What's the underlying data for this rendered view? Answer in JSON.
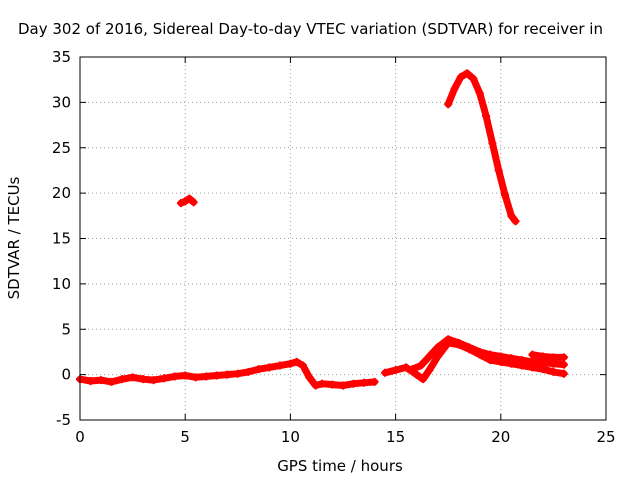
{
  "chart_data": {
    "type": "scatter",
    "title": "Day 302 of 2016, Sidereal Day-to-day VTEC variation (SDTVAR) for receiver in",
    "xlabel": "GPS time / hours",
    "ylabel": "SDTVAR / TECUs",
    "xlim": [
      0,
      25
    ],
    "ylim": [
      -5,
      35
    ],
    "xticks": [
      0,
      5,
      10,
      15,
      20,
      25
    ],
    "yticks": [
      -5,
      0,
      5,
      10,
      15,
      20,
      25,
      30,
      35
    ],
    "grid": true,
    "legend": "none",
    "marker": "+",
    "color": "#ff0000",
    "series": [
      {
        "x": [
          0.0,
          0.5,
          1.0,
          1.5,
          2.0,
          2.5,
          3.0,
          3.5,
          4.0,
          4.5,
          5.0,
          5.5,
          6.0,
          6.5,
          7.0,
          7.5,
          8.0,
          8.5,
          9.0,
          9.5,
          10.0,
          10.3,
          10.6,
          10.9,
          11.2,
          11.5,
          12.0,
          12.5,
          13.0,
          13.5,
          14.0
        ],
        "y": [
          -0.5,
          -0.7,
          -0.6,
          -0.8,
          -0.5,
          -0.3,
          -0.5,
          -0.6,
          -0.4,
          -0.2,
          -0.1,
          -0.3,
          -0.2,
          -0.1,
          0.0,
          0.1,
          0.3,
          0.6,
          0.8,
          1.0,
          1.2,
          1.4,
          1.0,
          -0.3,
          -1.2,
          -1.0,
          -1.1,
          -1.2,
          -1.0,
          -0.9,
          -0.8
        ]
      },
      {
        "x": [
          4.8,
          5.0,
          5.2,
          5.4
        ],
        "y": [
          18.9,
          19.1,
          19.4,
          19.0
        ]
      },
      {
        "x": [
          14.5,
          15.0,
          15.5,
          16.0,
          16.3,
          16.6,
          17.0,
          17.5,
          18.0,
          18.5,
          19.0,
          19.5,
          20.0,
          20.5,
          21.0,
          21.5,
          22.0,
          22.5,
          23.0
        ],
        "y": [
          0.2,
          0.5,
          0.8,
          0.0,
          -0.5,
          0.5,
          2.0,
          3.5,
          3.3,
          2.8,
          2.2,
          1.6,
          1.4,
          1.2,
          1.0,
          0.8,
          0.6,
          0.3,
          0.1
        ]
      },
      {
        "x": [
          15.8,
          16.2,
          16.6,
          17.0,
          17.5,
          18.0,
          18.5,
          19.0,
          19.5,
          20.0,
          20.5,
          21.0,
          21.5,
          22.0,
          22.5,
          23.0
        ],
        "y": [
          0.6,
          1.0,
          2.0,
          3.0,
          3.9,
          3.5,
          3.0,
          2.5,
          2.2,
          2.0,
          1.8,
          1.6,
          1.4,
          1.3,
          1.2,
          1.1
        ]
      },
      {
        "x": [
          21.5,
          22.0,
          22.5,
          23.0
        ],
        "y": [
          2.2,
          2.0,
          1.9,
          1.9
        ]
      },
      {
        "x": [
          17.5,
          17.8,
          18.1,
          18.4,
          18.7,
          19.0,
          19.3,
          19.6,
          19.9,
          20.2,
          20.5,
          20.7
        ],
        "y": [
          29.8,
          31.5,
          32.8,
          33.2,
          32.6,
          31.0,
          28.5,
          25.5,
          22.5,
          19.8,
          17.5,
          16.9
        ]
      }
    ]
  }
}
